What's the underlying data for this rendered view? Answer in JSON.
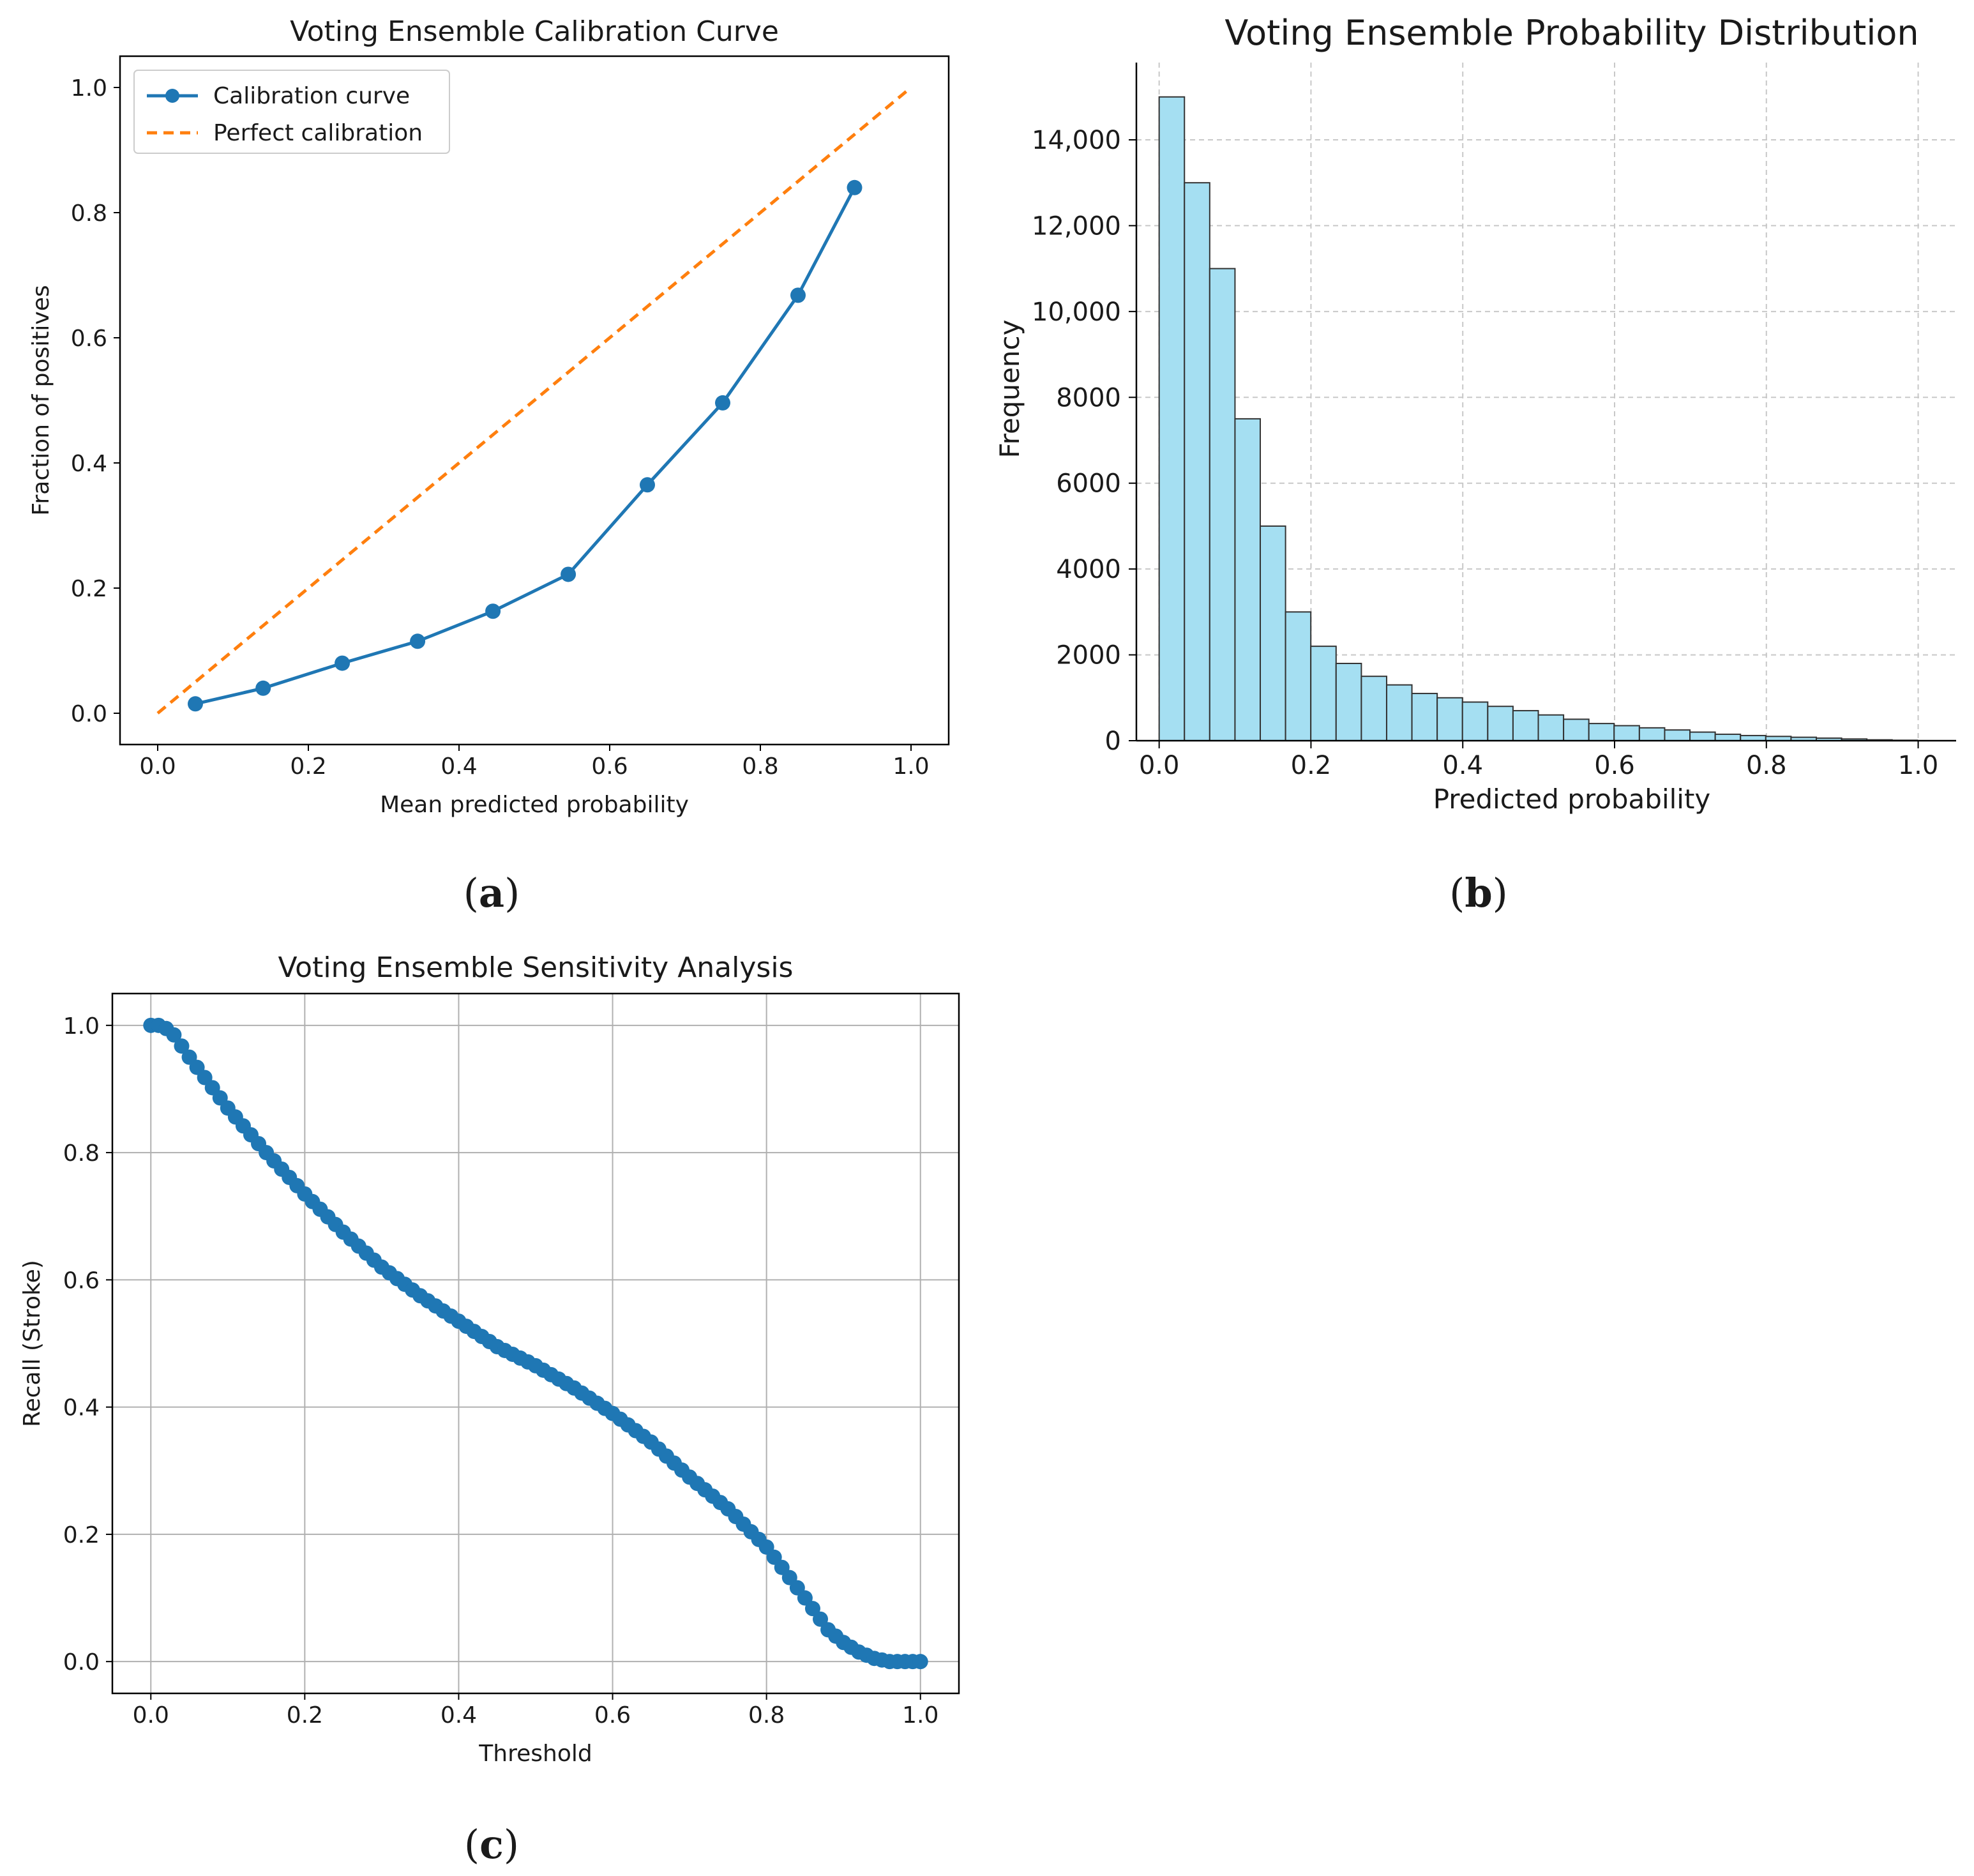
{
  "chart_data": [
    {
      "id": "a",
      "type": "line",
      "title": "Voting Ensemble Calibration Curve",
      "xlabel": "Mean predicted probability",
      "ylabel": "Fraction of positives",
      "xlim": [
        -0.05,
        1.05
      ],
      "ylim": [
        -0.05,
        1.05
      ],
      "xticks": [
        "0.0",
        "0.2",
        "0.4",
        "0.6",
        "0.8",
        "1.0"
      ],
      "yticks": [
        "0.0",
        "0.2",
        "0.4",
        "0.6",
        "0.8",
        "1.0"
      ],
      "grid": false,
      "legend_position": "top-left",
      "series": [
        {
          "name": "Calibration curve",
          "style": "line-markers",
          "color": "#1f77b4",
          "x": [
            0.05,
            0.14,
            0.245,
            0.345,
            0.445,
            0.545,
            0.65,
            0.75,
            0.85,
            0.925
          ],
          "y": [
            0.015,
            0.04,
            0.08,
            0.115,
            0.163,
            0.222,
            0.365,
            0.496,
            0.668,
            0.84
          ]
        },
        {
          "name": "Perfect calibration",
          "style": "dashed",
          "color": "#ff7f0e",
          "x": [
            0,
            1
          ],
          "y": [
            0,
            1
          ]
        }
      ]
    },
    {
      "id": "b",
      "type": "bar",
      "title": "Voting Ensemble Probability Distribution",
      "xlabel": "Predicted probability",
      "ylabel": "Frequency",
      "xlim": [
        -0.03,
        1.05
      ],
      "ylim": [
        0,
        15800
      ],
      "xticks": [
        "0.0",
        "0.2",
        "0.4",
        "0.6",
        "0.8",
        "1.0"
      ],
      "yticks": [
        "0",
        "2000",
        "4000",
        "6000",
        "8000",
        "10,000",
        "12,000",
        "14,000"
      ],
      "grid": true,
      "color": "#a5dff2",
      "edge_color": "#333333",
      "bin_start": 0.0,
      "bin_width": 0.0333,
      "values": [
        15000,
        13000,
        11000,
        7500,
        5000,
        3000,
        2200,
        1800,
        1500,
        1300,
        1100,
        1000,
        900,
        800,
        700,
        600,
        500,
        400,
        350,
        300,
        250,
        200,
        150,
        120,
        100,
        80,
        60,
        40,
        20,
        10
      ]
    },
    {
      "id": "c",
      "type": "scatter",
      "title": "Voting Ensemble Sensitivity Analysis",
      "xlabel": "Threshold",
      "ylabel": "Recall (Stroke)",
      "xlim": [
        -0.05,
        1.05
      ],
      "ylim": [
        -0.05,
        1.05
      ],
      "xticks": [
        "0.0",
        "0.2",
        "0.4",
        "0.6",
        "0.8",
        "1.0"
      ],
      "yticks": [
        "0.0",
        "0.2",
        "0.4",
        "0.6",
        "0.8",
        "1.0"
      ],
      "grid": true,
      "color": "#1f77b4",
      "x_range": [
        0,
        1
      ],
      "n_points": 101,
      "curve_knots": {
        "x": [
          0,
          0.01,
          0.02,
          0.03,
          0.05,
          0.1,
          0.15,
          0.2,
          0.25,
          0.3,
          0.35,
          0.4,
          0.45,
          0.5,
          0.55,
          0.6,
          0.65,
          0.7,
          0.75,
          0.8,
          0.85,
          0.88,
          0.9,
          0.92,
          0.94,
          0.96,
          0.98,
          1.0
        ],
        "y": [
          1.0,
          1.0,
          0.995,
          0.985,
          0.95,
          0.87,
          0.8,
          0.735,
          0.675,
          0.62,
          0.575,
          0.535,
          0.495,
          0.465,
          0.43,
          0.39,
          0.345,
          0.29,
          0.24,
          0.18,
          0.1,
          0.05,
          0.03,
          0.015,
          0.005,
          0.0,
          0.0,
          0.0
        ]
      }
    }
  ],
  "captions": {
    "a": {
      "open": "(",
      "letter": "a",
      "close": ")"
    },
    "b": {
      "open": "(",
      "letter": "b",
      "close": ")"
    },
    "c": {
      "open": "(",
      "letter": "c",
      "close": ")"
    }
  }
}
